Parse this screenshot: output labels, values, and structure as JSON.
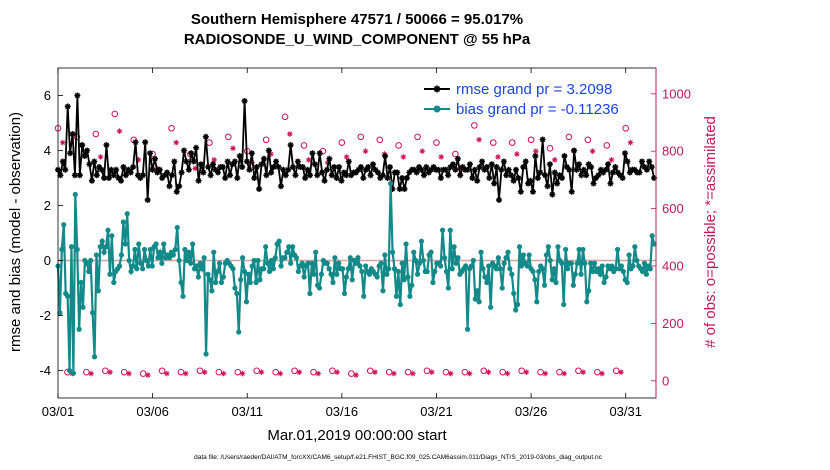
{
  "chart_data": {
    "type": "line",
    "title": "Southern Hemisphere 47571 / 50066 = 95.017%",
    "subtitle": "RADIOSONDE_U_WIND_COMPONENT @ 55 hPa",
    "xlabel": "Mar.01,2019 00:00:00 start",
    "ylabel": "rmse and bias (model - observation)",
    "ylabel_right": "# of obs: o=possible; *=assimilated",
    "xlim": [
      0,
      31.6
    ],
    "ylim": [
      -5,
      7
    ],
    "ylim_right": [
      -60,
      1090
    ],
    "x_ticks": [
      0,
      5,
      10,
      15,
      20,
      25,
      30
    ],
    "x_tick_labels": [
      "03/01",
      "03/06",
      "03/11",
      "03/16",
      "03/21",
      "03/26",
      "03/31"
    ],
    "y_ticks": [
      -4,
      -2,
      0,
      2,
      4,
      6
    ],
    "y_tick_labels": [
      "-4",
      "-2",
      "0",
      "2",
      "4",
      "6"
    ],
    "y_ticks_right": [
      0,
      200,
      400,
      600,
      800,
      1000
    ],
    "y_tick_labels_right": [
      "0",
      "200",
      "400",
      "600",
      "800",
      "1000"
    ],
    "legend": [
      {
        "label": "rmse grand pr = 3.2098",
        "color": "#000000",
        "marker": "star"
      },
      {
        "label": "bias grand pr = -0.11236",
        "color": "#138a8a",
        "marker": "circle"
      }
    ],
    "footer": "data file: /Users/raeder/DAI/ATM_forcXX/CAM6_setup/f.e21.FHIST_BGC.f09_025.CAM6assim.011/Diags_NTrS_2019-03/obs_diag_output.nc",
    "series": [
      {
        "name": "rmse",
        "axis": "left",
        "color": "#000000",
        "values": [
          3.3,
          3.1,
          3.6,
          3.3,
          5.6,
          3.9,
          4.6,
          3.1,
          6.0,
          3.1,
          4.2,
          3.8,
          4.0,
          3.5,
          2.9,
          3.6,
          3.1,
          3.4,
          3.3,
          3.0,
          4.2,
          3.0,
          3.3,
          3.1,
          3.3,
          3.0,
          2.9,
          3.4,
          3.1,
          3.3,
          3.2,
          3.4,
          4.3,
          3.1,
          3.0,
          3.1,
          4.3,
          2.2,
          3.9,
          3.3,
          3.7,
          3.2,
          3.3,
          3.0,
          3.1,
          3.2,
          2.7,
          3.1,
          3.6,
          2.5,
          2.7,
          3.2,
          4.0,
          3.6,
          3.3,
          3.9,
          3.6,
          4.1,
          2.9,
          3.5,
          3.2,
          4.5,
          3.4,
          3.1,
          3.5,
          3.3,
          3.2,
          3.4,
          3.4,
          3.0,
          3.6,
          3.1,
          3.5,
          3.6,
          3.0,
          3.8,
          3.4,
          5.8,
          3.6,
          3.3,
          3.9,
          3.0,
          3.4,
          2.6,
          3.5,
          3.7,
          3.1,
          4.0,
          3.2,
          3.4,
          3.6,
          3.4,
          2.7,
          3.3,
          3.1,
          3.3,
          4.2,
          3.4,
          3.1,
          3.6,
          3.4,
          3.4,
          3.0,
          3.3,
          3.1,
          3.9,
          3.5,
          3.1,
          3.9,
          3.2,
          2.9,
          3.3,
          3.7,
          3.1,
          3.4,
          3.0,
          3.4,
          2.9,
          3.2,
          3.1,
          3.6,
          3.1,
          3.2,
          3.2,
          3.3,
          3.4,
          3.0,
          3.3,
          3.4,
          3.1,
          3.5,
          3.3,
          3.2,
          3.0,
          3.1,
          3.8,
          3.0,
          3.4,
          2.6,
          3.2,
          3.2,
          2.6,
          3.0,
          2.6,
          3.0,
          3.2,
          3.3,
          3.3,
          3.2,
          3.4,
          3.3,
          3.1,
          3.4,
          3.2,
          3.3,
          3.4,
          3.3,
          3.3,
          3.0,
          3.3,
          3.3,
          3.1,
          3.4,
          3.5,
          3.3,
          3.7,
          3.1,
          3.4,
          3.3,
          3.3,
          3.5,
          3.0,
          3.3,
          2.9,
          3.4,
          3.6,
          3.3,
          3.4,
          3.0,
          3.5,
          2.8,
          3.4,
          2.2,
          3.3,
          3.6,
          3.1,
          3.3,
          3.1,
          2.9,
          3.3,
          3.0,
          2.5,
          3.4,
          3.6,
          2.8,
          2.9,
          2.5,
          3.8,
          3.0,
          3.2,
          4.4,
          3.1,
          2.7,
          3.5,
          2.4,
          3.2,
          2.8,
          3.1,
          3.0,
          3.8,
          3.4,
          3.3,
          2.5,
          4.0,
          3.3,
          3.5,
          3.1,
          3.3,
          3.1,
          3.5,
          3.4,
          2.8,
          3.0,
          3.1,
          3.3,
          3.2,
          3.3,
          3.5,
          2.8,
          3.2,
          3.4,
          3.2,
          3.1,
          3.0,
          3.9,
          3.6,
          3.2,
          3.3,
          3.3,
          3.2,
          3.2,
          3.6,
          3.4,
          3.3,
          3.6,
          3.4,
          3.0
        ]
      },
      {
        "name": "bias",
        "axis": "left",
        "color": "#138a8a",
        "values": [
          -0.2,
          -1.9,
          0.4,
          1.3,
          -1.2,
          -1.3,
          -4.0,
          0.5,
          -4.1,
          2.4,
          0.4,
          -2.5,
          -0.8,
          -1.7,
          0.0,
          -0.1,
          -0.4,
          0.0,
          -1.9,
          -3.5,
          0.2,
          -1.1,
          0.5,
          0.7,
          0.3,
          0.5,
          1.1,
          -0.5,
          0.9,
          -0.8,
          -0.4,
          -0.3,
          -0.2,
          0.2,
          1.4,
          0.6,
          1.7,
          0.0,
          -0.4,
          -0.2,
          0.4,
          -0.3,
          0.6,
          -0.1,
          -0.3,
          0.4,
          0.0,
          -0.2,
          0.4,
          -0.2,
          0.5,
          0.6,
          0.1,
          0.3,
          -0.1,
          0.6,
          0.1,
          0.2,
          0.1,
          0.3,
          0.2,
          0.4,
          1.2,
          0.0,
          -0.8,
          -1.3,
          0.4,
          0.0,
          0.3,
          -0.1,
          0.6,
          -0.3,
          -0.2,
          -0.6,
          -0.1,
          -0.3,
          0.1,
          -3.4,
          -0.5,
          -0.7,
          -1.1,
          0.3,
          -0.8,
          -0.4,
          -0.1,
          -0.8,
          -0.6,
          -0.1,
          0.0,
          -0.1,
          -0.2,
          -0.3,
          -1.0,
          -1.2,
          -2.6,
          -0.7,
          0.1,
          -0.4,
          -1.5,
          -0.5,
          -0.8,
          -0.2,
          0.0,
          -0.8,
          0.0,
          -0.7,
          -0.3,
          -0.3,
          0.5,
          -0.1,
          -0.4,
          0.0,
          -0.3,
          0.1,
          0.6,
          0.7,
          -0.2,
          0.1,
          0.1,
          0.3,
          0.5,
          -0.1,
          0.5,
          0.2,
          0.1,
          -0.4,
          -0.2,
          -0.1,
          -0.6,
          -0.2,
          -0.1,
          -1.2,
          -0.1,
          -0.5,
          0.3,
          -0.9,
          -1.0,
          -0.5,
          0.0,
          -0.1,
          -0.1,
          -0.3,
          -0.5,
          -0.8,
          0.1,
          -0.5,
          -0.1,
          -0.3,
          -0.3,
          -1.2,
          -0.6,
          -0.3,
          0.1,
          -0.7,
          0.0,
          -0.1,
          0.1,
          -0.2,
          -0.4,
          -1.3,
          -0.2,
          -0.4,
          -0.5,
          -0.3,
          -0.4,
          -0.5,
          -0.6,
          -0.2,
          -0.1,
          -1.1,
          0.2,
          -0.5,
          -0.3,
          2.8,
          0.3,
          -0.3,
          -1.3,
          -0.4,
          -1.6,
          -0.1,
          -0.7,
          0.6,
          -0.6,
          -1.3,
          -0.9,
          0.3,
          0.0,
          -0.5,
          -0.1,
          0.7,
          0.0,
          -0.4,
          -0.4,
          0.2,
          0.3,
          -0.8,
          -0.4,
          -0.1,
          -0.1,
          -0.2,
          1.1,
          0.1,
          -0.4,
          -1.0,
          1.1,
          -0.3,
          0.5,
          -0.1,
          0.1,
          -0.5,
          -0.4,
          -0.3,
          -0.2,
          -2.5,
          -0.3,
          -0.2,
          0.0,
          -1.4,
          -1.1,
          -1.5,
          0.3,
          -0.3,
          -0.6,
          -0.8,
          -0.2,
          -1.7,
          -0.1,
          -0.2,
          -0.3,
          0.1,
          -0.3,
          -1.0,
          -0.1,
          0.1,
          0.3,
          -0.3,
          -0.5,
          -1.2,
          -1.8,
          -1.6,
          0.5,
          -0.2,
          0.2,
          -0.1,
          -0.2,
          0.2,
          -0.3,
          -0.4,
          -0.7,
          -1.5,
          -0.4,
          -0.2,
          -0.3,
          -0.9,
          0.2,
          0.5,
          0.0,
          -0.7,
          -0.3,
          -0.8,
          0.5,
          0.0,
          -0.1,
          -1.6,
          0.4,
          -0.3,
          -0.1,
          -0.1,
          -0.9,
          -0.5,
          -0.1,
          0.4,
          -0.5,
          0.4,
          -0.1,
          -1.5,
          -1.1,
          -0.1,
          -0.4,
          -0.1,
          -0.4,
          -0.3,
          -0.5,
          -0.2,
          -0.8,
          -0.6,
          -0.2,
          -0.3,
          -0.2,
          -0.4,
          -0.3,
          0.4,
          -0.3,
          -0.2,
          -0.4,
          -0.7,
          -0.8,
          0.2,
          -0.3,
          -0.2,
          0.5,
          0.0,
          -0.2,
          -0.3,
          -0.4,
          -0.1,
          -0.5,
          -0.2,
          -0.3,
          0.9,
          0.6
        ]
      },
      {
        "name": "possible obs (o)",
        "axis": "right",
        "color": "#d0105a",
        "x_start": 0.0,
        "x_step": 0.5,
        "values": [
          880,
          30,
          850,
          30,
          860,
          35,
          930,
          30,
          840,
          25,
          790,
          35,
          880,
          30,
          790,
          35,
          830,
          30,
          850,
          30,
          800,
          35,
          840,
          30,
          920,
          35,
          820,
          30,
          800,
          35,
          830,
          25,
          850,
          35,
          840,
          30,
          820,
          30,
          850,
          35,
          830,
          30,
          790,
          30,
          890,
          35,
          830,
          30,
          830,
          35,
          840,
          30,
          810,
          30,
          850,
          35,
          840,
          30,
          820,
          35,
          880
        ]
      },
      {
        "name": "assimilated obs (*)",
        "axis": "right",
        "color": "#d0105a",
        "x_start": 0.25,
        "x_step": 0.5,
        "values": [
          830,
          25,
          820,
          25,
          780,
          30,
          870,
          25,
          770,
          20,
          740,
          25,
          830,
          25,
          740,
          30,
          770,
          25,
          810,
          25,
          760,
          30,
          790,
          25,
          860,
          30,
          770,
          25,
          760,
          30,
          780,
          20,
          800,
          30,
          790,
          25,
          780,
          25,
          800,
          30,
          780,
          25,
          740,
          25,
          840,
          30,
          780,
          25,
          790,
          30,
          800,
          25,
          770,
          25,
          800,
          30,
          800,
          25,
          770,
          30,
          830
        ]
      }
    ]
  }
}
